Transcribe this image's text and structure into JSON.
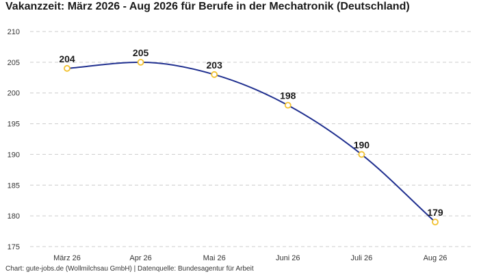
{
  "chart_data": {
    "type": "line",
    "title": "Vakanzzeit: März 2026 - Aug 2026 für Berufe in der Mechatronik (Deutschland)",
    "xlabel": "",
    "ylabel": "",
    "categories": [
      "März 26",
      "Apr 26",
      "Mai 26",
      "Juni 26",
      "Juli 26",
      "Aug 26"
    ],
    "series": [
      {
        "values": [
          204,
          205,
          203,
          198,
          190,
          179
        ]
      }
    ],
    "ylim": [
      175,
      210
    ],
    "yticks": [
      175,
      180,
      185,
      190,
      195,
      200,
      205,
      210
    ],
    "grid": true,
    "data_labels": true,
    "line_color": "#1f2f8f",
    "marker_fill": "#ffffff",
    "marker_stroke": "#f2c12e",
    "grid_color": "#cccccc"
  },
  "footer": "Chart: gute-jobs.de (Wollmilchsau GmbH) | Datenquelle: Bundesagentur für Arbeit"
}
